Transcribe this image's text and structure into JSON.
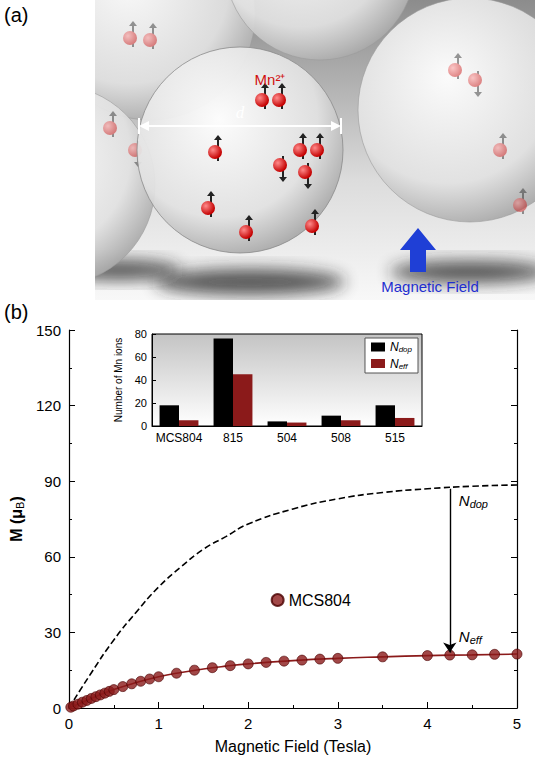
{
  "panel_a": {
    "label": "(a)",
    "ion_label": "Mn²⁺",
    "diameter_label": "d",
    "field_label": "Magnetic Field"
  },
  "chart_data": [
    {
      "type": "scatter",
      "panel_label": "(b)",
      "x_label": {
        "text": "Magnetic Field (Tesla)"
      },
      "y_label": {
        "text": "M (μ",
        "sub": "B",
        "after": ")"
      },
      "xlim": [
        0,
        5
      ],
      "xticks": [
        0,
        1,
        2,
        3,
        4,
        5
      ],
      "ylim": [
        0,
        150
      ],
      "yticks": [
        0,
        30,
        60,
        90,
        120,
        150
      ],
      "grid": false,
      "legend": "center",
      "series": [
        {
          "name": "MCS804",
          "type": "scatter",
          "color": "#8b1a1a",
          "marker": "circle",
          "x": [
            0.02,
            0.05,
            0.1,
            0.15,
            0.2,
            0.25,
            0.3,
            0.35,
            0.4,
            0.45,
            0.5,
            0.6,
            0.7,
            0.8,
            0.9,
            1.0,
            1.2,
            1.4,
            1.6,
            1.8,
            2.0,
            2.2,
            2.4,
            2.6,
            2.8,
            3.0,
            3.5,
            4.0,
            4.25,
            4.5,
            4.75,
            5.0
          ],
          "values": [
            0.3,
            0.8,
            1.5,
            2.3,
            3.0,
            3.8,
            4.5,
            5.2,
            5.9,
            6.6,
            7.3,
            8.5,
            9.6,
            10.6,
            11.5,
            12.4,
            13.8,
            15.0,
            16.0,
            16.8,
            17.5,
            18.1,
            18.6,
            19.0,
            19.4,
            19.7,
            20.3,
            20.8,
            21.0,
            21.1,
            21.3,
            21.4
          ]
        },
        {
          "type": "line",
          "color": "#8b1a1a",
          "line_style": "solid",
          "x": [
            0,
            0.25,
            0.5,
            0.75,
            1,
            1.25,
            1.5,
            1.75,
            2,
            2.5,
            3,
            3.5,
            4,
            4.5,
            5
          ],
          "values": [
            0,
            3.8,
            7.3,
            10.1,
            12.4,
            14.1,
            15.5,
            16.6,
            17.5,
            18.8,
            19.7,
            20.3,
            20.8,
            21.1,
            21.4
          ]
        },
        {
          "type": "line",
          "color": "#000000",
          "line_style": "dashed",
          "x": [
            0,
            0.25,
            0.5,
            0.75,
            1,
            1.25,
            1.5,
            1.75,
            2,
            2.5,
            3,
            3.5,
            4,
            4.5,
            5
          ],
          "values": [
            0,
            14,
            27,
            38,
            48,
            56,
            63,
            68,
            73,
            79,
            83,
            85.5,
            87,
            88,
            88.5
          ]
        }
      ],
      "arrow": {
        "x": 4.25,
        "from": {
          "y": 87,
          "label": {
            "text": "N",
            "sub": "dop"
          }
        },
        "to": {
          "y": 22,
          "label": {
            "text": "N",
            "sub": "eff"
          }
        }
      }
    },
    {
      "type": "bar",
      "y_label": {
        "text": "Number of Mn ions"
      },
      "categories": [
        "MCS804",
        "815",
        "504",
        "508",
        "515"
      ],
      "ylim": [
        0,
        80
      ],
      "yticks": [
        0,
        20,
        40,
        60,
        80
      ],
      "grid": false,
      "legend": "upper right",
      "series": [
        {
          "name": {
            "text": "N",
            "sub": "dop"
          },
          "color": "#000000",
          "values": [
            18,
            76,
            4,
            9,
            18
          ]
        },
        {
          "name": {
            "text": "N",
            "sub": "eff"
          },
          "color": "#8b1a1a",
          "values": [
            5,
            45,
            3,
            5,
            7
          ]
        }
      ]
    }
  ]
}
